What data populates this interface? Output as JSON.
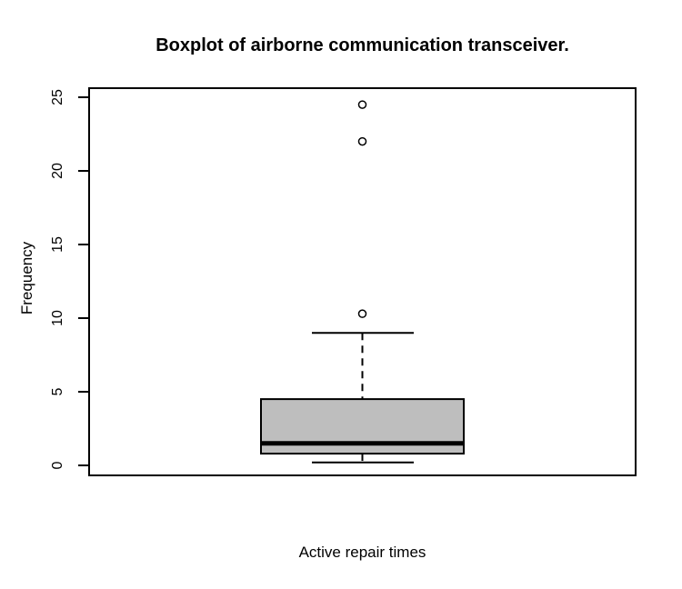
{
  "chart_data": {
    "type": "boxplot",
    "title": "Boxplot of airborne communication transceiver.",
    "xlabel": "Active repair times",
    "ylabel": "Frequency",
    "ylim": [
      0,
      25
    ],
    "yticks": [
      0,
      5,
      10,
      15,
      20,
      25
    ],
    "grid": false,
    "legend": "none",
    "series": [
      {
        "name": "Active repair times",
        "stats": {
          "whisker_low": 0.2,
          "q1": 0.8,
          "median": 1.5,
          "q3": 4.5,
          "whisker_high": 9.0
        },
        "outliers": [
          10.3,
          22.0,
          24.5
        ]
      }
    ],
    "colors": {
      "box_fill": "#BEBEBE",
      "line": "#000000",
      "background": "#FFFFFF"
    }
  }
}
